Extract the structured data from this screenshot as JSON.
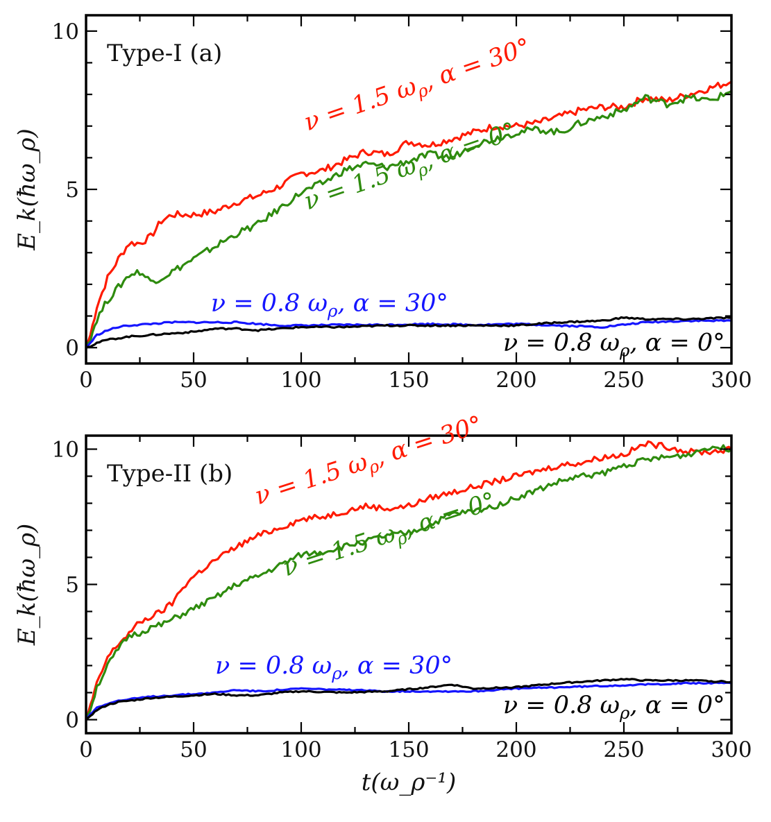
{
  "colors": {
    "red": "#ff1a00",
    "green": "#2e8b0e",
    "blue": "#1515ff",
    "black": "#000000"
  },
  "chart_data": [
    {
      "type": "line",
      "title": "Type-I (a)",
      "xlabel": "",
      "ylabel": "E_k(ħω_ρ)",
      "xlim": [
        0,
        300
      ],
      "ylim": [
        -0.5,
        10.5
      ],
      "xticks": [
        0,
        50,
        100,
        150,
        200,
        250,
        300
      ],
      "yticks": [
        0,
        5,
        10
      ],
      "grid": false,
      "series": [
        {
          "name": "ν = 1.5 ω_ρ, α = 30°",
          "color": "red",
          "x": [
            0,
            2,
            5,
            10,
            15,
            20,
            25,
            30,
            35,
            40,
            45,
            50,
            60,
            70,
            80,
            90,
            100,
            110,
            120,
            130,
            140,
            150,
            160,
            170,
            180,
            190,
            200,
            210,
            220,
            230,
            240,
            250,
            260,
            270,
            280,
            290,
            300
          ],
          "y": [
            0,
            0.4,
            1.3,
            2.2,
            2.8,
            3.3,
            3.3,
            3.5,
            4.0,
            4.2,
            4.2,
            4.2,
            4.3,
            4.6,
            4.8,
            5.1,
            5.5,
            5.6,
            5.9,
            6.2,
            6.1,
            6.5,
            6.4,
            6.6,
            6.8,
            7.0,
            7.0,
            7.1,
            7.3,
            7.5,
            7.6,
            7.6,
            7.9,
            7.8,
            8.0,
            8.2,
            8.4
          ]
        },
        {
          "name": "ν = 1.5 ω_ρ, α = 0°",
          "color": "green",
          "x": [
            0,
            2,
            5,
            10,
            15,
            20,
            25,
            30,
            35,
            40,
            45,
            50,
            60,
            70,
            80,
            90,
            100,
            110,
            120,
            130,
            140,
            150,
            160,
            170,
            180,
            190,
            200,
            210,
            220,
            230,
            240,
            250,
            260,
            270,
            280,
            290,
            300
          ],
          "y": [
            0,
            0.3,
            0.9,
            1.5,
            1.9,
            2.3,
            2.4,
            2.1,
            2.2,
            2.4,
            2.6,
            2.8,
            3.2,
            3.6,
            3.9,
            4.4,
            4.9,
            5.2,
            5.6,
            5.8,
            5.7,
            5.9,
            6.1,
            6.0,
            6.4,
            6.6,
            6.8,
            6.9,
            6.8,
            7.1,
            7.3,
            7.5,
            7.9,
            7.7,
            7.9,
            7.8,
            8.1
          ]
        },
        {
          "name": "ν = 0.8 ω_ρ, α = 30°",
          "color": "blue",
          "x": [
            0,
            2,
            5,
            10,
            15,
            20,
            30,
            40,
            50,
            60,
            70,
            80,
            90,
            100,
            120,
            140,
            160,
            180,
            200,
            220,
            240,
            260,
            280,
            300
          ],
          "y": [
            0,
            0.15,
            0.4,
            0.55,
            0.65,
            0.7,
            0.75,
            0.8,
            0.8,
            0.8,
            0.8,
            0.75,
            0.7,
            0.7,
            0.72,
            0.72,
            0.75,
            0.72,
            0.75,
            0.7,
            0.65,
            0.8,
            0.85,
            0.85
          ]
        },
        {
          "name": "ν = 0.8 ω_ρ, α = 0°",
          "color": "black",
          "x": [
            0,
            2,
            5,
            10,
            15,
            20,
            30,
            40,
            50,
            60,
            70,
            80,
            90,
            100,
            120,
            140,
            160,
            180,
            200,
            220,
            240,
            250,
            260,
            280,
            300
          ],
          "y": [
            0,
            0.05,
            0.15,
            0.25,
            0.3,
            0.35,
            0.4,
            0.45,
            0.5,
            0.6,
            0.6,
            0.55,
            0.6,
            0.65,
            0.65,
            0.7,
            0.7,
            0.7,
            0.7,
            0.8,
            0.85,
            0.95,
            0.9,
            0.9,
            0.95
          ]
        }
      ],
      "annotations": [
        {
          "text": "ν = 1.5 ω_ρ, α = 30°",
          "color": "red",
          "x": 103,
          "y": 6.85,
          "rotation": -19
        },
        {
          "text": "ν = 1.5 ω_ρ, α = 0°",
          "color": "green",
          "x": 103,
          "y": 4.35,
          "rotation": -19
        },
        {
          "text": "ν = 0.8 ω_ρ, α = 30°",
          "color": "blue",
          "x": 58,
          "y": 1.15,
          "rotation": 0
        },
        {
          "text": "ν = 0.8 ω_ρ, α = 0°",
          "color": "black",
          "x": 297,
          "y": -0.1,
          "rotation": 0,
          "anchor": "end"
        }
      ]
    },
    {
      "type": "line",
      "title": "Type-II (b)",
      "xlabel": "t(ω_ρ⁻¹)",
      "ylabel": "E_k(ħω_ρ)",
      "xlim": [
        0,
        300
      ],
      "ylim": [
        -0.5,
        10.5
      ],
      "xticks": [
        0,
        50,
        100,
        150,
        200,
        250,
        300
      ],
      "yticks": [
        0,
        5,
        10
      ],
      "grid": false,
      "series": [
        {
          "name": "ν = 1.5 ω_ρ, α = 30°",
          "color": "red",
          "x": [
            0,
            2,
            5,
            10,
            15,
            20,
            25,
            30,
            35,
            40,
            45,
            50,
            55,
            60,
            70,
            80,
            90,
            100,
            110,
            120,
            130,
            140,
            150,
            160,
            170,
            180,
            190,
            200,
            210,
            220,
            230,
            240,
            250,
            260,
            270,
            280,
            290,
            300
          ],
          "y": [
            0,
            0.5,
            1.3,
            2.3,
            2.8,
            3.2,
            3.6,
            3.8,
            4.0,
            4.3,
            4.9,
            5.3,
            5.6,
            5.9,
            6.4,
            6.8,
            7.1,
            7.4,
            7.5,
            7.7,
            7.9,
            7.8,
            7.9,
            8.2,
            8.4,
            8.6,
            8.8,
            9.0,
            9.2,
            9.4,
            9.5,
            9.7,
            9.8,
            10.2,
            10.1,
            9.9,
            9.9,
            10.0
          ]
        },
        {
          "name": "ν = 1.5 ω_ρ, α = 0°",
          "color": "green",
          "x": [
            0,
            2,
            5,
            10,
            15,
            20,
            25,
            30,
            35,
            40,
            45,
            50,
            55,
            60,
            70,
            80,
            90,
            100,
            110,
            120,
            130,
            140,
            150,
            160,
            170,
            180,
            190,
            200,
            210,
            220,
            230,
            240,
            250,
            260,
            270,
            280,
            290,
            300
          ],
          "y": [
            0,
            0.4,
            1.2,
            2.0,
            2.6,
            3.1,
            3.2,
            3.4,
            3.5,
            3.7,
            3.9,
            4.1,
            4.3,
            4.5,
            5.0,
            5.3,
            5.7,
            6.1,
            6.2,
            6.4,
            6.6,
            6.8,
            6.9,
            7.2,
            7.6,
            7.7,
            7.9,
            8.2,
            8.5,
            8.8,
            9.0,
            9.1,
            9.4,
            9.6,
            9.7,
            9.8,
            10.1,
            10.0
          ]
        },
        {
          "name": "ν = 0.8 ω_ρ, α = 30°",
          "color": "blue",
          "x": [
            0,
            2,
            5,
            10,
            15,
            20,
            30,
            40,
            50,
            60,
            70,
            80,
            90,
            100,
            120,
            140,
            160,
            180,
            200,
            220,
            240,
            260,
            280,
            300
          ],
          "y": [
            0,
            0.2,
            0.45,
            0.6,
            0.7,
            0.75,
            0.85,
            0.9,
            0.95,
            1.0,
            1.1,
            1.05,
            1.1,
            1.15,
            1.1,
            1.05,
            1.05,
            1.05,
            1.15,
            1.2,
            1.25,
            1.3,
            1.35,
            1.35
          ]
        },
        {
          "name": "ν = 0.8 ω_ρ, α = 0°",
          "color": "black",
          "x": [
            0,
            2,
            5,
            10,
            15,
            20,
            30,
            40,
            50,
            60,
            70,
            80,
            90,
            100,
            120,
            140,
            160,
            170,
            180,
            200,
            220,
            240,
            250,
            260,
            280,
            300
          ],
          "y": [
            0,
            0.15,
            0.35,
            0.55,
            0.65,
            0.7,
            0.8,
            0.85,
            0.9,
            0.95,
            0.9,
            0.9,
            1.0,
            1.05,
            1.0,
            1.05,
            1.2,
            1.3,
            1.15,
            1.2,
            1.35,
            1.45,
            1.5,
            1.45,
            1.45,
            1.4
          ]
        }
      ],
      "annotations": [
        {
          "text": "ν = 1.5 ω_ρ, α = 30°",
          "color": "red",
          "x": 80,
          "y": 7.95,
          "rotation": -18
        },
        {
          "text": "ν = 1.5 ω_ρ, α = 0°",
          "color": "green",
          "x": 93,
          "y": 5.3,
          "rotation": -18
        },
        {
          "text": "ν = 0.8 ω_ρ, α = 30°",
          "color": "blue",
          "x": 60,
          "y": 1.7,
          "rotation": 0
        },
        {
          "text": "ν = 0.8 ω_ρ, α = 0°",
          "color": "black",
          "x": 297,
          "y": 0.25,
          "rotation": 0,
          "anchor": "end"
        }
      ]
    }
  ]
}
